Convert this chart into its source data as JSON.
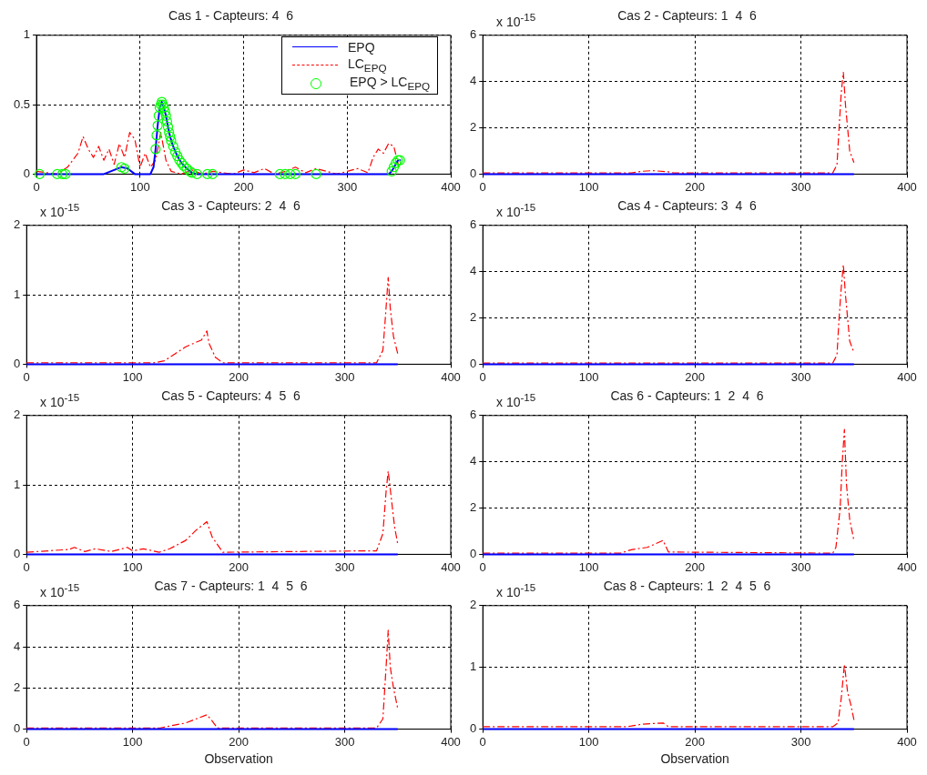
{
  "chart_data": [
    {
      "type": "line",
      "title": "Cas 1 - Capteurs: 4  6",
      "xlim": [
        0,
        400
      ],
      "xticks": [
        0,
        100,
        200,
        300,
        400
      ],
      "ylim": [
        0,
        1
      ],
      "yticks": [
        0,
        0.5,
        1
      ],
      "grid": true,
      "legend": "top right",
      "series": [
        {
          "name": "EPQ",
          "color": "#0000ff",
          "line_style": "solid",
          "marker": "none",
          "x": [
            0,
            65,
            75,
            82,
            88,
            95,
            110,
            113,
            115,
            117,
            119,
            121,
            123,
            125,
            127,
            129,
            132,
            136,
            140,
            145,
            150,
            155,
            160,
            340,
            343,
            346,
            349,
            352
          ],
          "values": [
            0,
            0,
            0.03,
            0.05,
            0.04,
            0,
            0,
            0.05,
            0.18,
            0.35,
            0.48,
            0.52,
            0.48,
            0.42,
            0.34,
            0.27,
            0.2,
            0.13,
            0.08,
            0.04,
            0.01,
            0,
            0,
            0,
            0.02,
            0.06,
            0.1,
            0.1
          ]
        },
        {
          "name": "LC$_{EPQ}$",
          "color": "#ff0000",
          "line_style": "dashed",
          "marker": "none",
          "x": [
            0,
            10,
            20,
            30,
            40,
            45,
            50,
            55,
            60,
            65,
            70,
            75,
            80,
            85,
            90,
            95,
            100,
            105,
            110,
            115,
            120,
            125,
            130,
            140,
            150,
            160,
            170,
            180,
            190,
            200,
            210,
            220,
            230,
            240,
            250,
            260,
            270,
            280,
            290,
            300,
            310,
            320,
            325,
            330,
            335,
            340,
            345,
            350
          ],
          "values": [
            0.02,
            0.01,
            0,
            0.05,
            0.15,
            0.27,
            0.18,
            0.12,
            0.2,
            0.1,
            0.18,
            0.07,
            0.22,
            0.12,
            0.3,
            0.25,
            0.05,
            0.15,
            0.05,
            0.1,
            0.3,
            0.1,
            0.02,
            0,
            0.03,
            0,
            0.02,
            0.01,
            0,
            0.03,
            0.01,
            0.04,
            0,
            0.02,
            0.05,
            0.01,
            0.04,
            0.02,
            0,
            0.02,
            0.04,
            0.01,
            0.12,
            0.18,
            0.15,
            0.22,
            0.2,
            0.05
          ]
        },
        {
          "name": "EPQ > LC$_{EPQ}$",
          "type": "scatter",
          "color": "#00ff00",
          "marker": "circle",
          "x": [
            3,
            20,
            25,
            28,
            82,
            85,
            115,
            116,
            117,
            118,
            119,
            120,
            121,
            122,
            123,
            124,
            125,
            126,
            127,
            128,
            129,
            130,
            132,
            134,
            136,
            138,
            140,
            142,
            145,
            148,
            150,
            155,
            165,
            170,
            235,
            240,
            245,
            250,
            270,
            343,
            345,
            347,
            349,
            351
          ],
          "values": [
            0,
            0,
            0,
            0,
            0.05,
            0.04,
            0.18,
            0.28,
            0.35,
            0.42,
            0.48,
            0.5,
            0.52,
            0.5,
            0.48,
            0.45,
            0.42,
            0.38,
            0.34,
            0.3,
            0.27,
            0.24,
            0.2,
            0.16,
            0.13,
            0.1,
            0.08,
            0.06,
            0.04,
            0.02,
            0.01,
            0,
            0,
            0,
            0,
            0,
            0,
            0,
            0,
            0.02,
            0.05,
            0.08,
            0.1,
            0.1
          ]
        }
      ]
    },
    {
      "type": "line",
      "title": "Cas 2 - Capteurs: 1  4  6",
      "annotations": [
        "x 10$^{-15}$"
      ],
      "xlim": [
        0,
        400
      ],
      "xticks": [
        0,
        100,
        200,
        300,
        400
      ],
      "ylim": [
        0,
        6
      ],
      "yticks": [
        0,
        2,
        4,
        6
      ],
      "grid": true,
      "series": [
        {
          "color": "#0000ff",
          "line_style": "solid",
          "marker": "none",
          "x": [
            0,
            350
          ],
          "values": [
            0,
            0
          ]
        },
        {
          "color": "#ff0000",
          "line_style": "dashed",
          "marker": "none",
          "x": [
            0,
            140,
            150,
            160,
            175,
            180,
            330,
            334,
            336,
            338,
            340,
            342,
            344,
            346,
            350
          ],
          "values": [
            0.05,
            0.05,
            0.12,
            0.15,
            0.1,
            0.05,
            0.05,
            0.4,
            2,
            3.5,
            4.4,
            3,
            2,
            1,
            0.5
          ]
        }
      ]
    },
    {
      "type": "line",
      "title": "Cas 3 - Capteurs: 2  4  6",
      "annotations": [
        "x 10$^{-15}$"
      ],
      "xlim": [
        0,
        400
      ],
      "xticks": [
        0,
        100,
        200,
        300,
        400
      ],
      "ylim": [
        0,
        2
      ],
      "yticks": [
        0,
        1,
        2
      ],
      "grid": true,
      "series": [
        {
          "color": "#0000ff",
          "line_style": "solid",
          "marker": "none",
          "x": [
            0,
            350
          ],
          "values": [
            0,
            0
          ]
        },
        {
          "color": "#ff0000",
          "line_style": "dashed",
          "marker": "none",
          "x": [
            0,
            120,
            130,
            140,
            150,
            165,
            170,
            172,
            178,
            185,
            330,
            336,
            338,
            341,
            343,
            346,
            350
          ],
          "values": [
            0.02,
            0.02,
            0.05,
            0.15,
            0.25,
            0.35,
            0.48,
            0.3,
            0.1,
            0.02,
            0.02,
            0.2,
            0.6,
            1.25,
            0.8,
            0.4,
            0.15
          ]
        }
      ]
    },
    {
      "type": "line",
      "title": "Cas 4 - Capteurs: 3  4  6",
      "annotations": [
        "x 10$^{-15}$"
      ],
      "xlim": [
        0,
        400
      ],
      "xticks": [
        0,
        100,
        200,
        300,
        400
      ],
      "ylim": [
        0,
        6
      ],
      "yticks": [
        0,
        2,
        4,
        6
      ],
      "grid": true,
      "series": [
        {
          "color": "#0000ff",
          "line_style": "solid",
          "marker": "none",
          "x": [
            0,
            350
          ],
          "values": [
            0,
            0
          ]
        },
        {
          "color": "#ff0000",
          "line_style": "dashed",
          "marker": "none",
          "x": [
            0,
            330,
            334,
            336,
            338,
            340,
            342,
            344,
            346,
            350
          ],
          "values": [
            0.05,
            0.05,
            0.4,
            2,
            3.3,
            4.3,
            3,
            2,
            1,
            0.5
          ]
        }
      ]
    },
    {
      "type": "line",
      "title": "Cas 5 - Capteurs: 4  5  6",
      "annotations": [
        "x 10$^{-15}$"
      ],
      "xlim": [
        0,
        400
      ],
      "xticks": [
        0,
        100,
        200,
        300,
        400
      ],
      "ylim": [
        0,
        2
      ],
      "yticks": [
        0,
        1,
        2
      ],
      "grid": true,
      "series": [
        {
          "color": "#0000ff",
          "line_style": "solid",
          "marker": "none",
          "x": [
            0,
            350
          ],
          "values": [
            0,
            0
          ]
        },
        {
          "color": "#ff0000",
          "line_style": "dashed",
          "marker": "none",
          "x": [
            0,
            40,
            45,
            55,
            65,
            80,
            95,
            100,
            110,
            125,
            135,
            150,
            160,
            170,
            175,
            185,
            320,
            330,
            336,
            339,
            341,
            344,
            347,
            350
          ],
          "values": [
            0.03,
            0.07,
            0.1,
            0.04,
            0.08,
            0.04,
            0.1,
            0.05,
            0.08,
            0.03,
            0.08,
            0.2,
            0.35,
            0.47,
            0.25,
            0.03,
            0.05,
            0.05,
            0.3,
            0.9,
            1.2,
            0.8,
            0.4,
            0.15
          ]
        }
      ]
    },
    {
      "type": "line",
      "title": "Cas 6 - Capteurs: 1  2  4  6",
      "annotations": [
        "x 10$^{-15}$"
      ],
      "xlim": [
        0,
        400
      ],
      "xticks": [
        0,
        100,
        200,
        300,
        400
      ],
      "ylim": [
        0,
        6
      ],
      "yticks": [
        0,
        2,
        4,
        6
      ],
      "grid": true,
      "series": [
        {
          "color": "#0000ff",
          "line_style": "solid",
          "marker": "none",
          "x": [
            0,
            350
          ],
          "values": [
            0,
            0
          ]
        },
        {
          "color": "#ff0000",
          "line_style": "dashed",
          "marker": "none",
          "x": [
            0,
            130,
            140,
            155,
            170,
            175,
            330,
            333,
            337,
            339,
            341,
            343,
            346,
            350
          ],
          "values": [
            0.05,
            0.05,
            0.2,
            0.3,
            0.6,
            0.1,
            0.05,
            0.3,
            2,
            4,
            5.4,
            3,
            1.5,
            0.6
          ]
        }
      ]
    },
    {
      "type": "line",
      "title": "Cas 7 - Capteurs: 1  4  5  6",
      "annotations": [
        "x 10$^{-15}$"
      ],
      "xlabel": "Observation",
      "xlim": [
        0,
        400
      ],
      "xticks": [
        0,
        100,
        200,
        300,
        400
      ],
      "ylim": [
        0,
        6
      ],
      "yticks": [
        0,
        2,
        4,
        6
      ],
      "grid": true,
      "series": [
        {
          "color": "#0000ff",
          "line_style": "solid",
          "marker": "none",
          "x": [
            0,
            350
          ],
          "values": [
            0,
            0
          ]
        },
        {
          "color": "#ff0000",
          "line_style": "dashed",
          "marker": "none",
          "x": [
            0,
            125,
            130,
            150,
            170,
            175,
            180,
            330,
            336,
            339,
            341,
            343,
            346,
            350
          ],
          "values": [
            0.05,
            0.05,
            0.1,
            0.3,
            0.7,
            0.4,
            0.05,
            0.05,
            0.5,
            3,
            4.8,
            3,
            2,
            1
          ]
        }
      ]
    },
    {
      "type": "line",
      "title": "Cas 8 - Capteurs: 1  2  4  5  6",
      "annotations": [
        "x 10$^{-15}$"
      ],
      "xlabel": "Observation",
      "xlim": [
        0,
        400
      ],
      "xticks": [
        0,
        100,
        200,
        300,
        400
      ],
      "ylim": [
        0,
        2
      ],
      "yticks": [
        0,
        1,
        2
      ],
      "grid": true,
      "series": [
        {
          "color": "#0000ff",
          "line_style": "solid",
          "marker": "none",
          "x": [
            0,
            350
          ],
          "values": [
            0,
            0
          ]
        },
        {
          "color": "#ff0000",
          "line_style": "dashed",
          "marker": "none",
          "x": [
            0,
            135,
            140,
            150,
            170,
            175,
            330,
            335,
            338,
            341,
            344,
            347,
            350
          ],
          "values": [
            0.04,
            0.04,
            0.05,
            0.08,
            0.1,
            0.04,
            0.04,
            0.1,
            0.5,
            1.05,
            0.6,
            0.4,
            0.15
          ]
        }
      ]
    }
  ]
}
